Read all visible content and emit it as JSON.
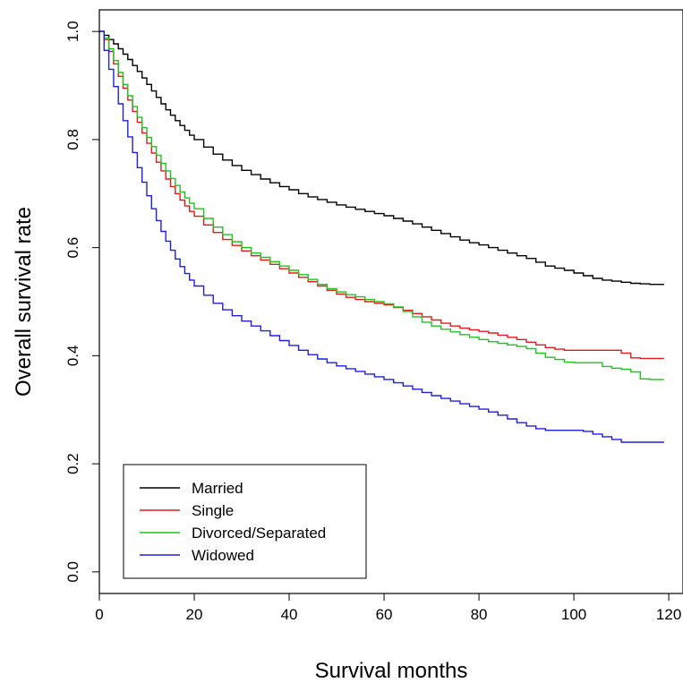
{
  "chart_data": {
    "type": "line",
    "step": true,
    "xlabel": "Survival months",
    "ylabel": "Overall survival rate",
    "xlim": [
      0,
      123
    ],
    "ylim": [
      -0.04,
      1.04
    ],
    "x_ticks": [
      0,
      20,
      40,
      60,
      80,
      100,
      120
    ],
    "y_ticks": [
      0.0,
      0.2,
      0.4,
      0.6,
      0.8,
      1.0
    ],
    "x_tick_labels": [
      "0",
      "20",
      "40",
      "60",
      "80",
      "100",
      "120"
    ],
    "y_tick_labels": [
      "0.0",
      "0.2",
      "0.4",
      "0.6",
      "0.8",
      "1.0"
    ],
    "grid": false,
    "legend_position": "bottom-left",
    "series": [
      {
        "name": "Married",
        "color": "#000000",
        "x": [
          0,
          1,
          2,
          3,
          4,
          5,
          6,
          7,
          8,
          9,
          10,
          11,
          12,
          13,
          14,
          15,
          16,
          17,
          18,
          19,
          20,
          22,
          24,
          26,
          28,
          30,
          32,
          34,
          36,
          38,
          40,
          42,
          44,
          46,
          48,
          50,
          52,
          54,
          56,
          58,
          60,
          62,
          64,
          66,
          68,
          70,
          72,
          74,
          76,
          78,
          80,
          82,
          84,
          86,
          88,
          90,
          92,
          94,
          96,
          98,
          100,
          102,
          104,
          106,
          108,
          110,
          112,
          114,
          116,
          119
        ],
        "y": [
          1.0,
          0.993,
          0.985,
          0.977,
          0.968,
          0.958,
          0.948,
          0.937,
          0.926,
          0.914,
          0.902,
          0.89,
          0.878,
          0.866,
          0.855,
          0.845,
          0.835,
          0.826,
          0.817,
          0.808,
          0.8,
          0.786,
          0.773,
          0.762,
          0.752,
          0.743,
          0.735,
          0.727,
          0.72,
          0.713,
          0.707,
          0.7,
          0.694,
          0.689,
          0.684,
          0.679,
          0.675,
          0.671,
          0.667,
          0.663,
          0.659,
          0.654,
          0.649,
          0.644,
          0.638,
          0.632,
          0.626,
          0.62,
          0.614,
          0.609,
          0.605,
          0.6,
          0.595,
          0.59,
          0.585,
          0.58,
          0.573,
          0.566,
          0.562,
          0.558,
          0.553,
          0.548,
          0.543,
          0.54,
          0.538,
          0.536,
          0.534,
          0.533,
          0.532,
          0.532
        ]
      },
      {
        "name": "Single",
        "color": "#e31a1c",
        "x": [
          0,
          1,
          2,
          3,
          4,
          5,
          6,
          7,
          8,
          9,
          10,
          11,
          12,
          13,
          14,
          15,
          16,
          17,
          18,
          19,
          20,
          22,
          24,
          26,
          28,
          30,
          32,
          34,
          36,
          38,
          40,
          42,
          44,
          46,
          48,
          50,
          52,
          54,
          56,
          58,
          60,
          62,
          64,
          66,
          68,
          70,
          72,
          74,
          76,
          78,
          80,
          82,
          84,
          86,
          88,
          90,
          92,
          94,
          96,
          98,
          100,
          102,
          104,
          106,
          108,
          110,
          112,
          114,
          116,
          119
        ],
        "y": [
          1.0,
          0.985,
          0.963,
          0.94,
          0.917,
          0.895,
          0.873,
          0.852,
          0.832,
          0.812,
          0.793,
          0.775,
          0.758,
          0.742,
          0.727,
          0.713,
          0.7,
          0.688,
          0.677,
          0.667,
          0.658,
          0.642,
          0.628,
          0.615,
          0.604,
          0.594,
          0.585,
          0.577,
          0.569,
          0.561,
          0.553,
          0.545,
          0.537,
          0.529,
          0.521,
          0.514,
          0.508,
          0.504,
          0.5,
          0.497,
          0.494,
          0.489,
          0.484,
          0.478,
          0.472,
          0.466,
          0.46,
          0.455,
          0.451,
          0.448,
          0.445,
          0.442,
          0.438,
          0.434,
          0.43,
          0.425,
          0.42,
          0.415,
          0.412,
          0.41,
          0.41,
          0.41,
          0.41,
          0.41,
          0.41,
          0.405,
          0.396,
          0.395,
          0.395,
          0.395
        ]
      },
      {
        "name": "Divorced/Separated",
        "color": "#1fc41f",
        "x": [
          0,
          1,
          2,
          3,
          4,
          5,
          6,
          7,
          8,
          9,
          10,
          11,
          12,
          13,
          14,
          15,
          16,
          17,
          18,
          19,
          20,
          22,
          24,
          26,
          28,
          30,
          32,
          34,
          36,
          38,
          40,
          42,
          44,
          46,
          48,
          50,
          52,
          54,
          56,
          58,
          60,
          62,
          64,
          66,
          68,
          70,
          72,
          74,
          76,
          78,
          80,
          82,
          84,
          86,
          88,
          90,
          92,
          94,
          96,
          98,
          100,
          102,
          104,
          106,
          108,
          110,
          112,
          114,
          116,
          119
        ],
        "y": [
          1.0,
          0.988,
          0.968,
          0.946,
          0.924,
          0.902,
          0.881,
          0.861,
          0.841,
          0.822,
          0.804,
          0.787,
          0.771,
          0.756,
          0.742,
          0.728,
          0.715,
          0.703,
          0.692,
          0.682,
          0.672,
          0.654,
          0.638,
          0.624,
          0.611,
          0.6,
          0.59,
          0.582,
          0.574,
          0.566,
          0.558,
          0.55,
          0.541,
          0.532,
          0.524,
          0.518,
          0.513,
          0.509,
          0.504,
          0.5,
          0.496,
          0.49,
          0.482,
          0.472,
          0.462,
          0.455,
          0.449,
          0.444,
          0.439,
          0.434,
          0.43,
          0.426,
          0.423,
          0.42,
          0.417,
          0.413,
          0.405,
          0.397,
          0.393,
          0.388,
          0.387,
          0.387,
          0.387,
          0.38,
          0.377,
          0.375,
          0.37,
          0.357,
          0.356,
          0.356
        ]
      },
      {
        "name": "Widowed",
        "color": "#1f1fe0",
        "x": [
          0,
          1,
          2,
          3,
          4,
          5,
          6,
          7,
          8,
          9,
          10,
          11,
          12,
          13,
          14,
          15,
          16,
          17,
          18,
          19,
          20,
          22,
          24,
          26,
          28,
          30,
          32,
          34,
          36,
          38,
          40,
          42,
          44,
          46,
          48,
          50,
          52,
          54,
          56,
          58,
          60,
          62,
          64,
          66,
          68,
          70,
          72,
          74,
          76,
          78,
          80,
          82,
          84,
          86,
          88,
          90,
          92,
          94,
          96,
          98,
          100,
          102,
          104,
          106,
          108,
          110,
          112,
          114,
          116,
          119
        ],
        "y": [
          1.0,
          0.965,
          0.93,
          0.898,
          0.866,
          0.835,
          0.805,
          0.776,
          0.748,
          0.721,
          0.696,
          0.672,
          0.65,
          0.63,
          0.612,
          0.595,
          0.579,
          0.565,
          0.552,
          0.54,
          0.529,
          0.512,
          0.497,
          0.485,
          0.474,
          0.464,
          0.455,
          0.446,
          0.437,
          0.428,
          0.419,
          0.41,
          0.402,
          0.394,
          0.387,
          0.381,
          0.376,
          0.371,
          0.366,
          0.361,
          0.356,
          0.35,
          0.344,
          0.338,
          0.332,
          0.326,
          0.321,
          0.316,
          0.311,
          0.306,
          0.301,
          0.296,
          0.29,
          0.283,
          0.276,
          0.27,
          0.265,
          0.262,
          0.262,
          0.262,
          0.262,
          0.26,
          0.255,
          0.25,
          0.245,
          0.24,
          0.24,
          0.24,
          0.24,
          0.24
        ]
      }
    ]
  }
}
